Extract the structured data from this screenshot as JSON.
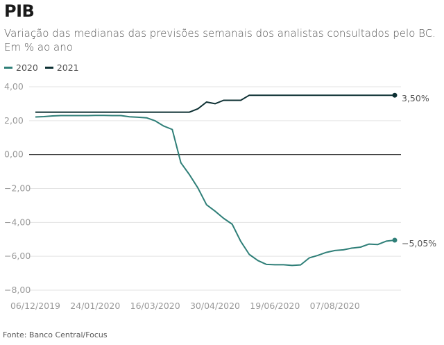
{
  "header": {
    "title": "PIB",
    "subtitle": "Variação das medianas das previsões semanais dos analistas consultados pelo BC. Em % ao ano"
  },
  "footer": {
    "source": "Fonte: Banco Central/Focus"
  },
  "colors": {
    "s2020": "#2f7f78",
    "s2021": "#0d3033",
    "grid": "#e3e3e3",
    "zero": "#222222"
  },
  "chart_data": {
    "type": "line",
    "title": "PIB",
    "subtitle": "Variação das medianas das previsões semanais dos analistas consultados pelo BC. Em % ao ano",
    "xlabel": "",
    "ylabel": "",
    "ylim": [
      -8,
      4
    ],
    "yticks": [
      4,
      2,
      0,
      -2,
      -4,
      -6,
      -8
    ],
    "ytick_labels": [
      "4,00",
      "2,00",
      "0,00",
      "−2,00",
      "−4,00",
      "−6,00",
      "−8,00"
    ],
    "xtick_labels": [
      "06/12/2019",
      "24/01/2020",
      "16/03/2020",
      "30/04/2020",
      "19/06/2020",
      "07/08/2020"
    ],
    "xtick_index": [
      0,
      7,
      14,
      21,
      28,
      35
    ],
    "grid": true,
    "legend": "top-left",
    "n_points": 43,
    "series": [
      {
        "name": "2020",
        "end_label": "−5,05%",
        "values": [
          2.22,
          2.24,
          2.28,
          2.3,
          2.3,
          2.3,
          2.3,
          2.31,
          2.31,
          2.3,
          2.3,
          2.23,
          2.2,
          2.17,
          1.99,
          1.68,
          1.48,
          -0.48,
          -1.18,
          -1.97,
          -2.96,
          -3.34,
          -3.76,
          -4.11,
          -5.12,
          -5.89,
          -6.25,
          -6.48,
          -6.5,
          -6.5,
          -6.54,
          -6.51,
          -6.1,
          -5.95,
          -5.77,
          -5.66,
          -5.62,
          -5.52,
          -5.46,
          -5.28,
          -5.31,
          -5.11,
          -5.05
        ]
      },
      {
        "name": "2021",
        "end_label": "3,50%",
        "values": [
          2.5,
          2.5,
          2.5,
          2.5,
          2.5,
          2.5,
          2.5,
          2.5,
          2.5,
          2.5,
          2.5,
          2.5,
          2.5,
          2.5,
          2.5,
          2.5,
          2.5,
          2.5,
          2.5,
          2.7,
          3.1,
          3.0,
          3.2,
          3.2,
          3.2,
          3.5,
          3.5,
          3.5,
          3.5,
          3.5,
          3.5,
          3.5,
          3.5,
          3.5,
          3.5,
          3.5,
          3.5,
          3.5,
          3.5,
          3.5,
          3.5,
          3.5,
          3.5
        ]
      }
    ]
  }
}
